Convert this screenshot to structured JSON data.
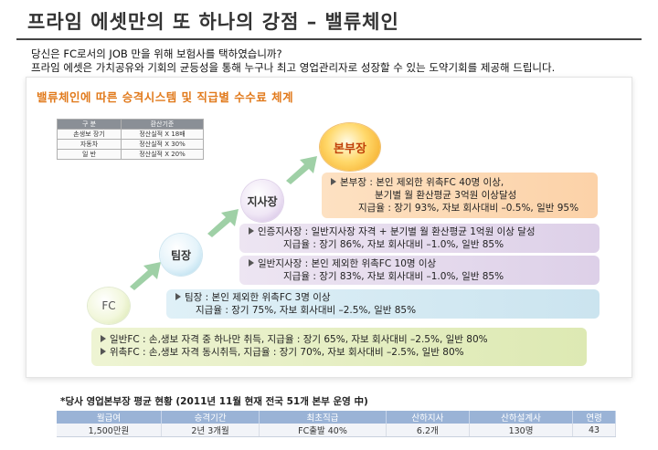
{
  "title": "프라임 에셋만의 또 하나의 강점 – 밸류체인",
  "intro": {
    "line1": "당신은 FC로서의 JOB 만을 위해 보험사를 택하였습니까?",
    "line2": "프라임 에셋은 가치공유와 기회의 균등성을 통해 누구나 최고 영업관리자로 성장할 수 있는 도약기회를 제공해 드립니다."
  },
  "panel_title": "밸류체인에 따른  승격시스템 및 직급별 수수료 체계",
  "basis_table": {
    "headers": [
      "구   분",
      "환산기준"
    ],
    "rows": [
      [
        "손생보 장기",
        "정산실적 X 18배"
      ],
      [
        "자동차",
        "정산실적 X 30%"
      ],
      [
        "일   반",
        "정산실적 X 20%"
      ]
    ]
  },
  "levels": {
    "fc": "FC",
    "team": "팀장",
    "branch": "지사장",
    "head": "본부장"
  },
  "boxes": {
    "head": {
      "line1": "본부장 : 본인 제외한 위촉FC 40명 이상,",
      "line2": "분기별 월 환산평균 3억원 이상달성",
      "line3": "지급율 : 장기 93%, 자보 회사대비 –0.5%, 일반 95%"
    },
    "branch_cert": {
      "line1": "인증지사장 : 일반지사장 자격 + 분기별 월 환산평균 1억원 이상 달성",
      "line2": "지급율 : 장기 86%, 자보 회사대비 –1.0%, 일반 85%"
    },
    "branch_general": {
      "line1": "일반지사장 : 본인 제외한 위촉FC 10명 이상",
      "line2": "지급율 : 장기 83%, 자보 회사대비 –1.0%, 일반 85%"
    },
    "team": {
      "line1": "팀장 : 본인 제외한 위촉FC 3명 이상",
      "line2": "지급율 : 장기 75%, 자보 회사대비 –2.5%, 일반 85%"
    },
    "fc": {
      "line1": "일반FC : 손,생보 자격 중 하나만 취득,  지급율 : 장기 65%, 자보 회사대비 –2.5%, 일반 80%",
      "line2": "위촉FC : 손,생보 자격 동시취득,    지급율 : 장기 70%, 자보 회사대비 –2.5%, 일반 80%"
    }
  },
  "status": {
    "title": "*당사 영업본부장 평균 현황 (2011년 11월 현재 전국 51개 본부 운영 中)",
    "headers": [
      "월급여",
      "승격기간",
      "최초직급",
      "산하지사",
      "산하설계사",
      "연령"
    ],
    "values": [
      "1,500만원",
      "2년 3개월",
      "FC출발 40%",
      "6.2개",
      "130명",
      "43"
    ]
  },
  "colors": {
    "accent": "#e17a1c",
    "head_box": "#fcd2a8",
    "branch_box": "#ddd0e8",
    "team_box": "#cbe4ef",
    "fc_box": "#dde9b3",
    "table_header": "#9ab3d6"
  }
}
